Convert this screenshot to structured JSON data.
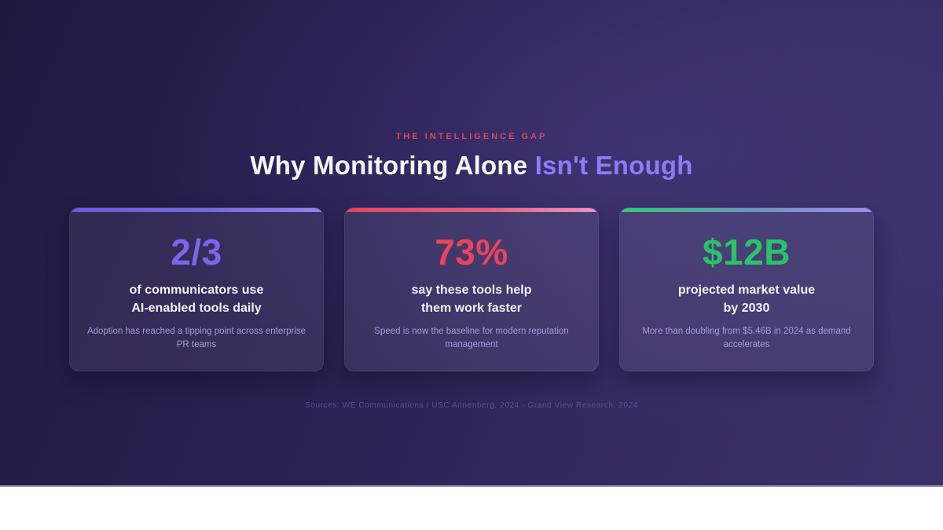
{
  "slide": {
    "eyebrow": "THE INTELLIGENCE GAP",
    "eyebrow_color": "#e0435a",
    "title_main": "Why Monitoring Alone ",
    "title_accent": "Isn't Enough",
    "title_accent_color": "#8d7bf5",
    "cards": [
      {
        "value": "2/3",
        "value_color": "#7c64ee",
        "accent_gradient": "linear-gradient(90deg, #6a5ae0 0%, #7668d8 55%, #9186f2 100%)",
        "heading_line1": "of communicators use",
        "heading_line2": "AI-enabled tools daily",
        "description": "Adoption has reached a tipping point across enterprise PR teams"
      },
      {
        "value": "73%",
        "value_color": "#e8455c",
        "accent_gradient": "linear-gradient(90deg, #e8445a 0%, #e4607e 55%, #ec93c2 100%)",
        "heading_line1": "say these tools help",
        "heading_line2": "them work faster",
        "description": "Speed is now the baseline for modern reputation management"
      },
      {
        "value": "$12B",
        "value_color": "#2bc368",
        "accent_gradient": "linear-gradient(90deg, #2ecc71 0%, #6f93bc 55%, #9f8ef5 100%)",
        "heading_line1": "projected market value",
        "heading_line2": "by 2030",
        "description": "More than doubling from $5.46B in 2024 as demand accelerates"
      }
    ],
    "sources": "Sources: WE Communications / USC Annenberg, 2024 · Grand View Research, 2024"
  }
}
